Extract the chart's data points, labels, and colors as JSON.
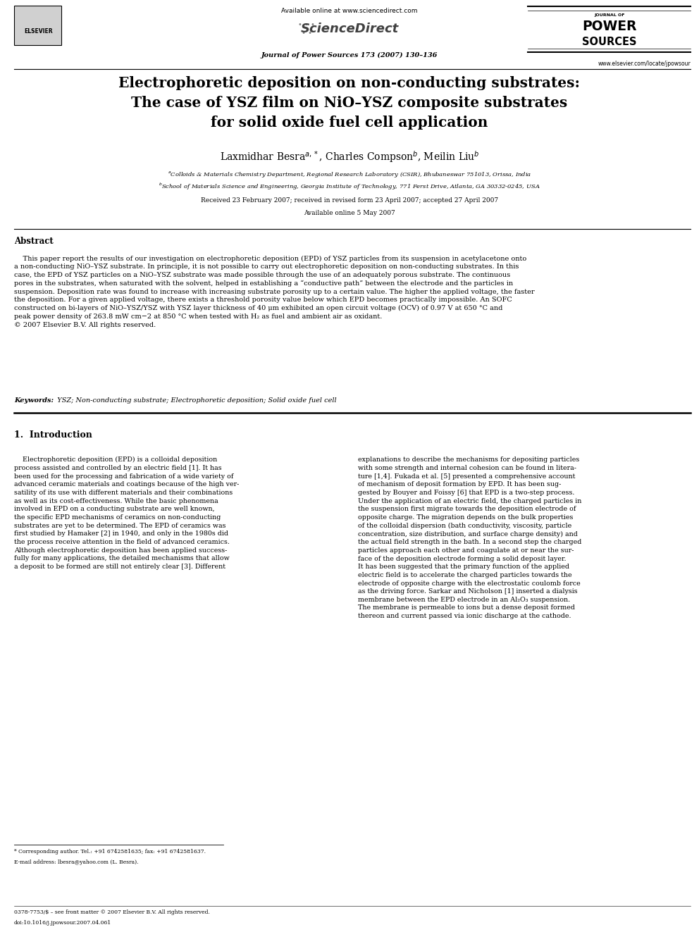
{
  "bg_color": "#ffffff",
  "page_width": 9.92,
  "page_height": 13.23,
  "header": {
    "available_online": "Available online at www.sciencedirect.com",
    "journal_name": "Journal of Power Sources 173 (2007) 130–136",
    "journal_url": "www.elsevier.com/locate/jpowsour",
    "elsevier_text": "ELSEVIER"
  },
  "title": "Electrophoretic deposition on non-conducting substrates:\nThe case of YSZ film on NiO–YSZ composite substrates\nfor solid oxide fuel cell application",
  "authors_line": "Laxmidhar Besra$^{a,*}$, Charles Compson$^{b}$, Meilin Liu$^{b}$",
  "affil_a": "$^{a}$Colloids & Materials Chemistry Department, Regional Research Laboratory (CSIR), Bhubaneswar 751013, Orissa, India",
  "affil_b": "$^{b}$School of Materials Science and Engineering, Georgia Institute of Technology, 771 Ferst Drive, Atlanta, GA 30332-0245, USA",
  "received": "Received 23 February 2007; received in revised form 23 April 2007; accepted 27 April 2007",
  "available": "Available online 5 May 2007",
  "abstract_title": "Abstract",
  "abstract_text": "    This paper report the results of our investigation on electrophoretic deposition (EPD) of YSZ particles from its suspension in acetylacetone onto\na non-conducting NiO–YSZ substrate. In principle, it is not possible to carry out electrophoretic deposition on non-conducting substrates. In this\ncase, the EPD of YSZ particles on a NiO–YSZ substrate was made possible through the use of an adequately porous substrate. The continuous\npores in the substrates, when saturated with the solvent, helped in establishing a “conductive path” between the electrode and the particles in\nsuspension. Deposition rate was found to increase with increasing substrate porosity up to a certain value. The higher the applied voltage, the faster\nthe deposition. For a given applied voltage, there exists a threshold porosity value below which EPD becomes practically impossible. An SOFC\nconstructed on bi-layers of NiO–YSZ/YSZ with YSZ layer thickness of 40 μm exhibited an open circuit voltage (OCV) of 0.97 V at 650 °C and\npeak power density of 263.8 mW cm−2 at 850 °C when tested with H₂ as fuel and ambient air as oxidant.\n© 2007 Elsevier B.V. All rights reserved.",
  "keywords_label": "Keywords:",
  "keywords_text": "  YSZ; Non-conducting substrate; Electrophoretic deposition; Solid oxide fuel cell",
  "section1_title": "1.  Introduction",
  "intro_col1": "    Electrophoretic deposition (EPD) is a colloidal deposition\nprocess assisted and controlled by an electric field [1]. It has\nbeen used for the processing and fabrication of a wide variety of\nadvanced ceramic materials and coatings because of the high ver-\nsatility of its use with different materials and their combinations\nas well as its cost-effectiveness. While the basic phenomena\ninvolved in EPD on a conducting substrate are well known,\nthe specific EPD mechanisms of ceramics on non-conducting\nsubstrates are yet to be determined. The EPD of ceramics was\nfirst studied by Hamaker [2] in 1940, and only in the 1980s did\nthe process receive attention in the field of advanced ceramics.\nAlthough electrophoretic deposition has been applied success-\nfully for many applications, the detailed mechanisms that allow\na deposit to be formed are still not entirely clear [3]. Different",
  "intro_col2": "explanations to describe the mechanisms for depositing particles\nwith some strength and internal cohesion can be found in litera-\nture [1,4]. Fukada et al. [5] presented a comprehensive account\nof mechanism of deposit formation by EPD. It has been sug-\ngested by Bouyer and Foissy [6] that EPD is a two-step process.\nUnder the application of an electric field, the charged particles in\nthe suspension first migrate towards the deposition electrode of\nopposite charge. The migration depends on the bulk properties\nof the colloidal dispersion (bath conductivity, viscosity, particle\nconcentration, size distribution, and surface charge density) and\nthe actual field strength in the bath. In a second step the charged\nparticles approach each other and coagulate at or near the sur-\nface of the deposition electrode forming a solid deposit layer.\nIt has been suggested that the primary function of the applied\nelectric field is to accelerate the charged particles towards the\nelectrode of opposite charge with the electrostatic coulomb force\nas the driving force. Sarkar and Nicholson [1] inserted a dialysis\nmembrane between the EPD electrode in an Al₂O₃ suspension.\nThe membrane is permeable to ions but a dense deposit formed\nthereon and current passed via ionic discharge at the cathode.",
  "footnote_star": "* Corresponding author. Tel.: +91 6742581635; fax: +91 6742581637.",
  "footnote_email": "E-mail address: lbesra@yahoo.com (L. Besra).",
  "footer_left": "0378-7753/$ – see front matter © 2007 Elsevier B.V. All rights reserved.",
  "footer_doi": "doi:10.1016/j.jpowsour.2007.04.061"
}
